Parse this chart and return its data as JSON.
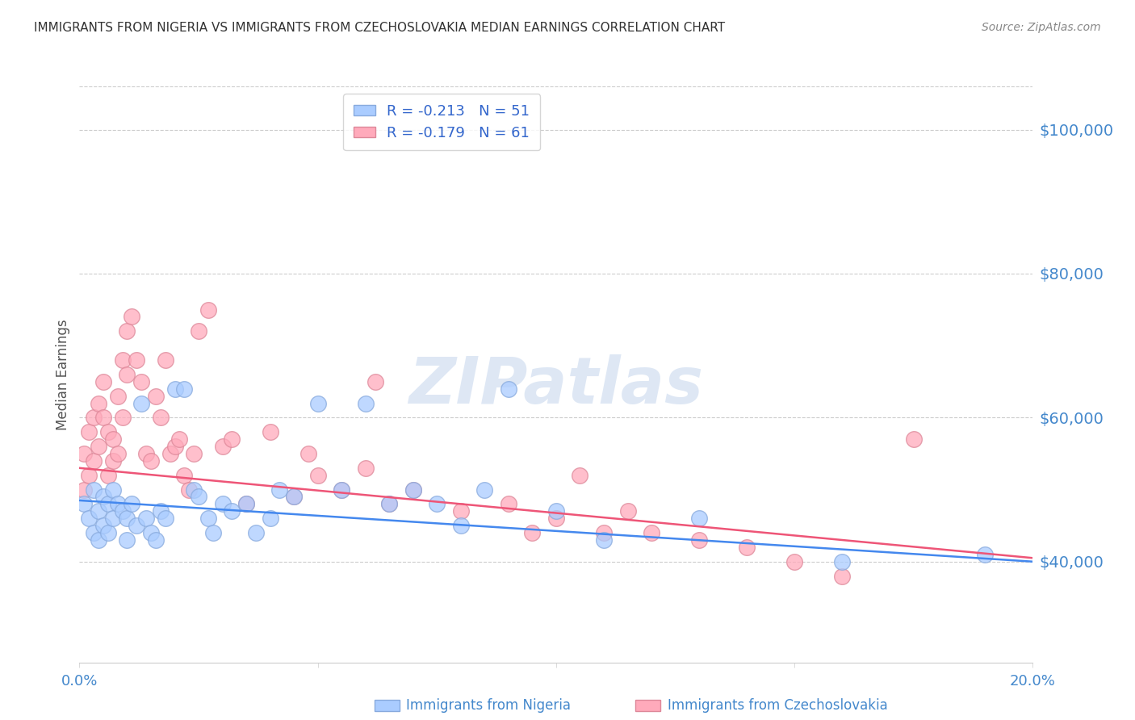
{
  "title": "IMMIGRANTS FROM NIGERIA VS IMMIGRANTS FROM CZECHOSLOVAKIA MEDIAN EARNINGS CORRELATION CHART",
  "source": "Source: ZipAtlas.com",
  "ylabel": "Median Earnings",
  "y_ticks": [
    40000,
    60000,
    80000,
    100000
  ],
  "y_tick_labels": [
    "$40,000",
    "$60,000",
    "$80,000",
    "$100,000"
  ],
  "xlim": [
    0.0,
    0.2
  ],
  "ylim": [
    26000,
    106000
  ],
  "nigeria_color": "#aaccff",
  "nigeria_edge": "#88aadd",
  "czechoslovakia_color": "#ffaabb",
  "czechoslovakia_edge": "#dd8899",
  "nigeria_R": -0.213,
  "nigeria_N": 51,
  "czechoslovakia_R": -0.179,
  "czechoslovakia_N": 61,
  "regression_blue": "#4488ee",
  "regression_pink": "#ee5577",
  "legend_text_color": "#3366cc",
  "title_color": "#333333",
  "axis_label_color": "#4488cc",
  "grid_color": "#cccccc",
  "watermark_color": "#c8d8ee",
  "nigeria_x": [
    0.001,
    0.002,
    0.003,
    0.003,
    0.004,
    0.004,
    0.005,
    0.005,
    0.006,
    0.006,
    0.007,
    0.007,
    0.008,
    0.009,
    0.01,
    0.01,
    0.011,
    0.012,
    0.013,
    0.014,
    0.015,
    0.016,
    0.017,
    0.018,
    0.02,
    0.022,
    0.024,
    0.025,
    0.027,
    0.028,
    0.03,
    0.032,
    0.035,
    0.037,
    0.04,
    0.042,
    0.045,
    0.05,
    0.055,
    0.06,
    0.065,
    0.07,
    0.075,
    0.08,
    0.085,
    0.09,
    0.1,
    0.11,
    0.13,
    0.16,
    0.19
  ],
  "nigeria_y": [
    48000,
    46000,
    50000,
    44000,
    47000,
    43000,
    49000,
    45000,
    48000,
    44000,
    50000,
    46000,
    48000,
    47000,
    46000,
    43000,
    48000,
    45000,
    62000,
    46000,
    44000,
    43000,
    47000,
    46000,
    64000,
    64000,
    50000,
    49000,
    46000,
    44000,
    48000,
    47000,
    48000,
    44000,
    46000,
    50000,
    49000,
    62000,
    50000,
    62000,
    48000,
    50000,
    48000,
    45000,
    50000,
    64000,
    47000,
    43000,
    46000,
    40000,
    41000
  ],
  "czechoslovakia_x": [
    0.001,
    0.001,
    0.002,
    0.002,
    0.003,
    0.003,
    0.004,
    0.004,
    0.005,
    0.005,
    0.006,
    0.006,
    0.007,
    0.007,
    0.008,
    0.008,
    0.009,
    0.009,
    0.01,
    0.01,
    0.011,
    0.012,
    0.013,
    0.014,
    0.015,
    0.016,
    0.017,
    0.018,
    0.019,
    0.02,
    0.021,
    0.022,
    0.023,
    0.024,
    0.025,
    0.027,
    0.03,
    0.032,
    0.035,
    0.04,
    0.045,
    0.048,
    0.05,
    0.055,
    0.06,
    0.062,
    0.065,
    0.07,
    0.08,
    0.09,
    0.095,
    0.1,
    0.105,
    0.11,
    0.115,
    0.12,
    0.13,
    0.14,
    0.15,
    0.16,
    0.175
  ],
  "czechoslovakia_y": [
    55000,
    50000,
    58000,
    52000,
    60000,
    54000,
    56000,
    62000,
    65000,
    60000,
    58000,
    52000,
    57000,
    54000,
    63000,
    55000,
    60000,
    68000,
    72000,
    66000,
    74000,
    68000,
    65000,
    55000,
    54000,
    63000,
    60000,
    68000,
    55000,
    56000,
    57000,
    52000,
    50000,
    55000,
    72000,
    75000,
    56000,
    57000,
    48000,
    58000,
    49000,
    55000,
    52000,
    50000,
    53000,
    65000,
    48000,
    50000,
    47000,
    48000,
    44000,
    46000,
    52000,
    44000,
    47000,
    44000,
    43000,
    42000,
    40000,
    38000,
    57000
  ],
  "nigeria_line_x": [
    0.0,
    0.2
  ],
  "nigeria_line_y": [
    48500,
    40000
  ],
  "czechoslovakia_line_x": [
    0.0,
    0.2
  ],
  "czechoslovakia_line_y": [
    53000,
    40500
  ]
}
